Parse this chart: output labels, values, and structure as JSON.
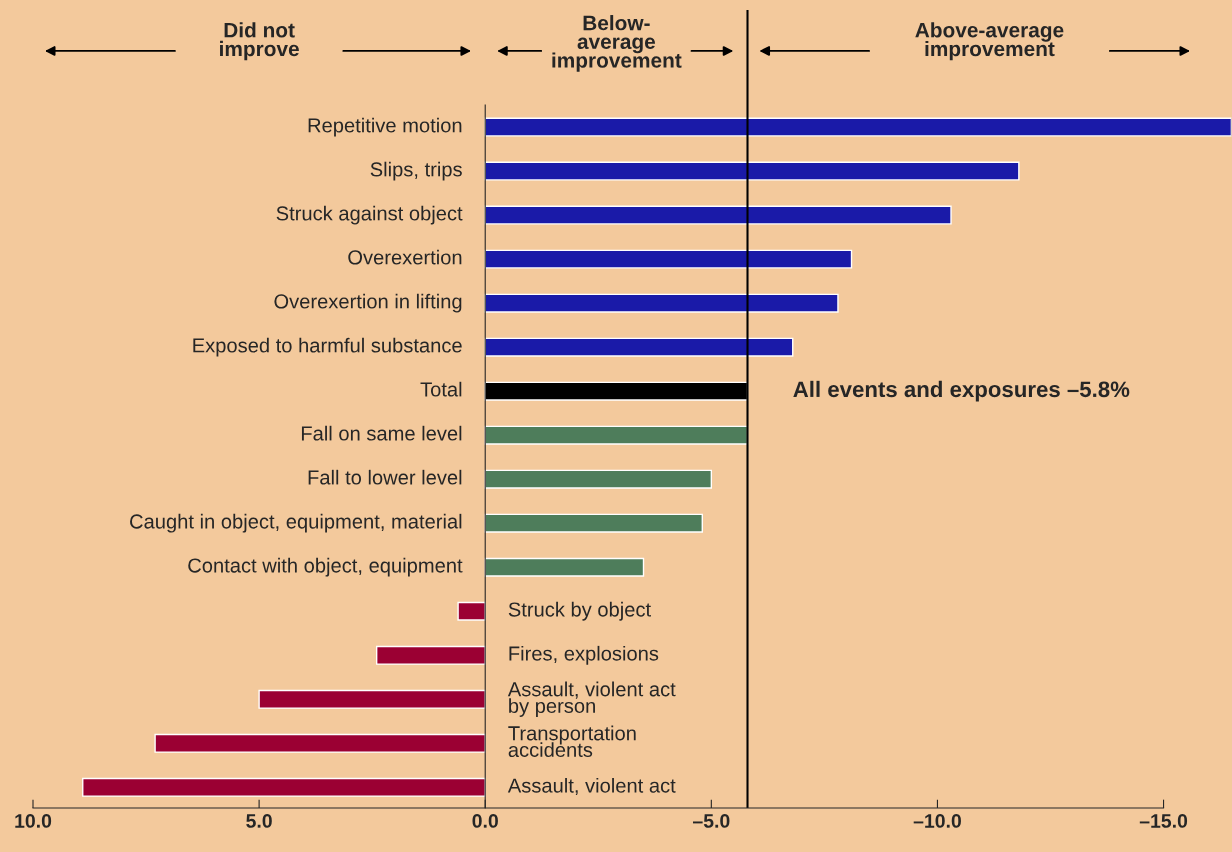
{
  "chart_data": {
    "type": "bar",
    "orientation": "horizontal",
    "categories": [
      "Repetitive motion",
      "Slips, trips",
      "Struck against object",
      "Overexertion",
      "Overexertion in lifting",
      "Exposed to harmful substance",
      "Total",
      "Fall on same level",
      "Fall to lower level",
      "Caught in object, equipment, material",
      "Contact with object, equipment",
      "Struck by object",
      "Fires, explosions",
      "Assault, violent act\nby person",
      "Transportation\naccidents",
      "Assault, violent act"
    ],
    "values": [
      -16.5,
      -11.8,
      -10.3,
      -8.1,
      -7.8,
      -6.8,
      -5.8,
      -5.8,
      -5.0,
      -4.8,
      -3.5,
      0.6,
      2.4,
      5.0,
      7.3,
      8.9
    ],
    "colors": [
      "#1a1aa8",
      "#1a1aa8",
      "#1a1aa8",
      "#1a1aa8",
      "#1a1aa8",
      "#1a1aa8",
      "#000000",
      "#4e7d5b",
      "#4e7d5b",
      "#4e7d5b",
      "#4e7d5b",
      "#9b0033",
      "#9b0033",
      "#9b0033",
      "#9b0033",
      "#9b0033"
    ],
    "xlim": [
      10,
      -16.5
    ],
    "xticks": [
      {
        "value": 10,
        "label": "10.0"
      },
      {
        "value": 5,
        "label": "5.0"
      },
      {
        "value": 0,
        "label": "0.0"
      },
      {
        "value": -5,
        "label": "–5.0"
      },
      {
        "value": -10,
        "label": "–10.0"
      },
      {
        "value": -15,
        "label": "–15.0"
      }
    ],
    "ref_lines": [
      {
        "axis": "x",
        "value": -5.8,
        "label": "All events and exposures –5.8%",
        "color": "#000000"
      }
    ],
    "annotations": [
      "Did not\nimprove",
      "Below-\naverage\nimprovement",
      "Above-average\nimprovement"
    ],
    "grid": false,
    "legend": false
  }
}
